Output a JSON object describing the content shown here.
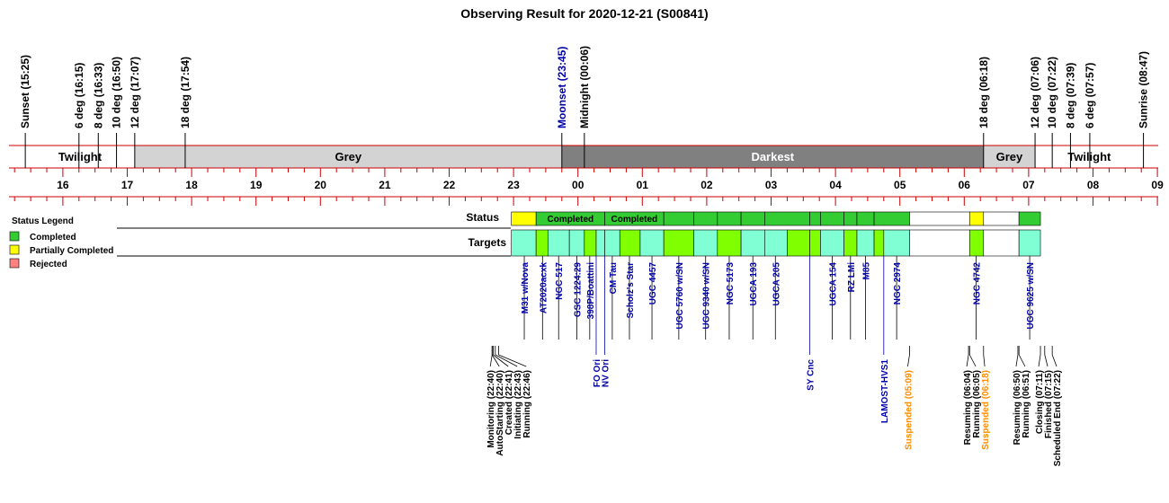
{
  "title": "Observing Result for 2020-12-21 (S00841)",
  "colors": {
    "grid": "#cc0000",
    "twilight": "#ffffff",
    "grey": "#d3d3d3",
    "darkest": "#808080",
    "completed": "#33cc33",
    "partial": "#ffff00",
    "rejected": "#ff8080",
    "target_a": "#80ffd4",
    "target_b": "#80ff00",
    "target_text": "#0000aa",
    "moon_text": "#0000aa",
    "suspended_text": "#ff8c00"
  },
  "events": [
    {
      "label": "Sunset (15:25)",
      "t": "15:25",
      "color": "#000000"
    },
    {
      "label": "6 deg (16:15)",
      "t": "16:15",
      "color": "#000000"
    },
    {
      "label": "8 deg (16:33)",
      "t": "16:33",
      "color": "#000000"
    },
    {
      "label": "10 deg (16:50)",
      "t": "16:50",
      "color": "#000000"
    },
    {
      "label": "12 deg (17:07)",
      "t": "17:07",
      "color": "#000000"
    },
    {
      "label": "18 deg (17:54)",
      "t": "17:54",
      "color": "#000000"
    },
    {
      "label": "Moonset (23:45)",
      "t": "23:45",
      "color": "#0000aa"
    },
    {
      "label": "Midnight (00:06)",
      "t": "00:06",
      "color": "#000000"
    },
    {
      "label": "18 deg (06:18)",
      "t": "06:18",
      "color": "#000000"
    },
    {
      "label": "12 deg (07:06)",
      "t": "07:06",
      "color": "#000000"
    },
    {
      "label": "10 deg (07:22)",
      "t": "07:22",
      "color": "#000000"
    },
    {
      "label": "8 deg (07:39)",
      "t": "07:39",
      "color": "#000000"
    },
    {
      "label": "6 deg (07:57)",
      "t": "07:57",
      "color": "#000000"
    },
    {
      "label": "Sunrise (08:47)",
      "t": "08:47",
      "color": "#000000"
    }
  ],
  "periods": [
    {
      "label": "Twilight",
      "start": "15:25",
      "end": "17:07",
      "kind": "twilight"
    },
    {
      "label": "Grey",
      "start": "17:07",
      "end": "23:45",
      "kind": "grey"
    },
    {
      "label": "Darkest",
      "start": "23:45",
      "end": "06:18",
      "kind": "darkest"
    },
    {
      "label": "Grey",
      "start": "06:18",
      "end": "07:06",
      "kind": "grey"
    },
    {
      "label": "Twilight",
      "start": "07:06",
      "end": "08:47",
      "kind": "twilight"
    }
  ],
  "hours": [
    "16",
    "17",
    "18",
    "19",
    "20",
    "21",
    "22",
    "23",
    "00",
    "01",
    "02",
    "03",
    "04",
    "05",
    "06",
    "07",
    "08",
    "09"
  ],
  "axis_range": [
    "15:00",
    "09:00"
  ],
  "rows": {
    "status": "Status",
    "targets": "Targets"
  },
  "legend": {
    "title": "Status Legend",
    "items": [
      {
        "label": "Completed",
        "color": "#33cc33"
      },
      {
        "label": "Partially Completed",
        "color": "#ffff00"
      },
      {
        "label": "Rejected",
        "color": "#ff8080"
      }
    ]
  },
  "status_blocks": [
    {
      "start": "22:58",
      "end": "23:21",
      "status": "partial",
      "label": ""
    },
    {
      "start": "23:21",
      "end": "00:25",
      "status": "completed",
      "label": "Completed"
    },
    {
      "start": "00:25",
      "end": "01:20",
      "status": "completed",
      "label": "Completed"
    },
    {
      "start": "01:20",
      "end": "01:48",
      "status": "completed",
      "label": ""
    },
    {
      "start": "01:48",
      "end": "02:10",
      "status": "completed",
      "label": ""
    },
    {
      "start": "02:10",
      "end": "02:32",
      "status": "completed",
      "label": ""
    },
    {
      "start": "02:32",
      "end": "02:54",
      "status": "completed",
      "label": ""
    },
    {
      "start": "02:54",
      "end": "03:36",
      "status": "completed",
      "label": ""
    },
    {
      "start": "03:36",
      "end": "03:46",
      "status": "completed",
      "label": ""
    },
    {
      "start": "03:46",
      "end": "04:08",
      "status": "completed",
      "label": ""
    },
    {
      "start": "04:08",
      "end": "04:20",
      "status": "completed",
      "label": ""
    },
    {
      "start": "04:20",
      "end": "04:36",
      "status": "completed",
      "label": ""
    },
    {
      "start": "04:36",
      "end": "05:09",
      "status": "completed",
      "label": ""
    },
    {
      "start": "05:09",
      "end": "06:05",
      "status": "empty",
      "label": ""
    },
    {
      "start": "06:05",
      "end": "06:18",
      "status": "partial",
      "label": ""
    },
    {
      "start": "06:18",
      "end": "06:51",
      "status": "empty",
      "label": ""
    },
    {
      "start": "06:51",
      "end": "07:11",
      "status": "completed",
      "label": ""
    }
  ],
  "target_blocks": [
    {
      "start": "22:58",
      "end": "23:21",
      "kind": "a"
    },
    {
      "start": "23:21",
      "end": "23:32",
      "kind": "b"
    },
    {
      "start": "23:32",
      "end": "23:52",
      "kind": "a"
    },
    {
      "start": "23:52",
      "end": "00:06",
      "kind": "a"
    },
    {
      "start": "00:06",
      "end": "00:17",
      "kind": "b"
    },
    {
      "start": "00:17",
      "end": "00:25",
      "kind": "a"
    },
    {
      "start": "00:25",
      "end": "00:39",
      "kind": "a"
    },
    {
      "start": "00:39",
      "end": "00:58",
      "kind": "b"
    },
    {
      "start": "00:58",
      "end": "01:20",
      "kind": "a"
    },
    {
      "start": "01:20",
      "end": "01:48",
      "kind": "b"
    },
    {
      "start": "01:48",
      "end": "02:10",
      "kind": "a"
    },
    {
      "start": "02:10",
      "end": "02:32",
      "kind": "b"
    },
    {
      "start": "02:32",
      "end": "02:54",
      "kind": "a"
    },
    {
      "start": "02:54",
      "end": "03:15",
      "kind": "a"
    },
    {
      "start": "03:15",
      "end": "03:36",
      "kind": "b"
    },
    {
      "start": "03:36",
      "end": "03:46",
      "kind": "b"
    },
    {
      "start": "03:46",
      "end": "04:08",
      "kind": "a"
    },
    {
      "start": "04:08",
      "end": "04:20",
      "kind": "b"
    },
    {
      "start": "04:20",
      "end": "04:36",
      "kind": "a"
    },
    {
      "start": "04:36",
      "end": "04:45",
      "kind": "b"
    },
    {
      "start": "04:45",
      "end": "05:09",
      "kind": "a"
    },
    {
      "start": "05:09",
      "end": "06:05",
      "kind": "empty"
    },
    {
      "start": "06:05",
      "end": "06:18",
      "kind": "b"
    },
    {
      "start": "06:18",
      "end": "06:51",
      "kind": "empty"
    },
    {
      "start": "06:51",
      "end": "07:11",
      "kind": "a"
    }
  ],
  "target_labels": [
    {
      "label": "M31 w/Nova",
      "t": "23:10"
    },
    {
      "label": "AT2020acxk",
      "t": "23:27"
    },
    {
      "label": "NGC 517",
      "t": "23:42"
    },
    {
      "label": "GSC 1224:29",
      "t": "23:59"
    },
    {
      "label": "398P/Boattini",
      "t": "00:11"
    },
    {
      "label": "CM Tau",
      "t": "00:32"
    },
    {
      "label": "Scholz's Star",
      "t": "00:48"
    },
    {
      "label": "UGC 4457",
      "t": "01:09"
    },
    {
      "label": "UGC 5760 w/SN",
      "t": "01:34"
    },
    {
      "label": "UGC 9340 w/SN",
      "t": "01:59"
    },
    {
      "label": "NGC 5173",
      "t": "02:21"
    },
    {
      "label": "UGCA 193",
      "t": "02:43"
    },
    {
      "label": "UGCA 205",
      "t": "03:04"
    },
    {
      "label": "UGCA 154",
      "t": "03:57"
    },
    {
      "label": "RZ LMi",
      "t": "04:14"
    },
    {
      "label": "M85",
      "t": "04:28"
    },
    {
      "label": "NGC 2974",
      "t": "04:57"
    },
    {
      "label": "NGC 4742",
      "t": "06:11"
    },
    {
      "label": "UGC 9625 w/SN",
      "t": "07:01"
    }
  ],
  "lower_labels": [
    {
      "label": "FO Ori",
      "t": "00:17",
      "color": "#0000aa"
    },
    {
      "label": "NV Ori",
      "t": "00:25",
      "color": "#0000aa"
    },
    {
      "label": "SY Cnc",
      "t": "03:36",
      "color": "#0000aa"
    },
    {
      "label": "LAMOST-HVS1",
      "t": "04:45",
      "color": "#0000aa"
    }
  ],
  "log_events": [
    {
      "label": "Monitoring (22:40)",
      "t": "22:40",
      "color": "#000000"
    },
    {
      "label": "AutoStarting (22:40)",
      "t": "22:40",
      "color": "#000000"
    },
    {
      "label": "Created (22:41)",
      "t": "22:41",
      "color": "#000000"
    },
    {
      "label": "Initiating (22:43)",
      "t": "22:43",
      "color": "#000000"
    },
    {
      "label": "Running (22:46)",
      "t": "22:46",
      "color": "#000000"
    },
    {
      "label": "Suspended (05:09)",
      "t": "05:09",
      "color": "#ff8c00"
    },
    {
      "label": "Resuming (06:04)",
      "t": "06:04",
      "color": "#000000"
    },
    {
      "label": "Running (06:05)",
      "t": "06:05",
      "color": "#000000"
    },
    {
      "label": "Suspended (06:18)",
      "t": "06:18",
      "color": "#ff8c00"
    },
    {
      "label": "Resuming (06:50)",
      "t": "06:50",
      "color": "#000000"
    },
    {
      "label": "Running (06:51)",
      "t": "06:51",
      "color": "#000000"
    },
    {
      "label": "Closing (07:11)",
      "t": "07:11",
      "color": "#000000"
    },
    {
      "label": "Finished (07:15)",
      "t": "07:15",
      "color": "#000000"
    },
    {
      "label": "Scheduled End (07:22)",
      "t": "07:22",
      "color": "#000000"
    }
  ]
}
